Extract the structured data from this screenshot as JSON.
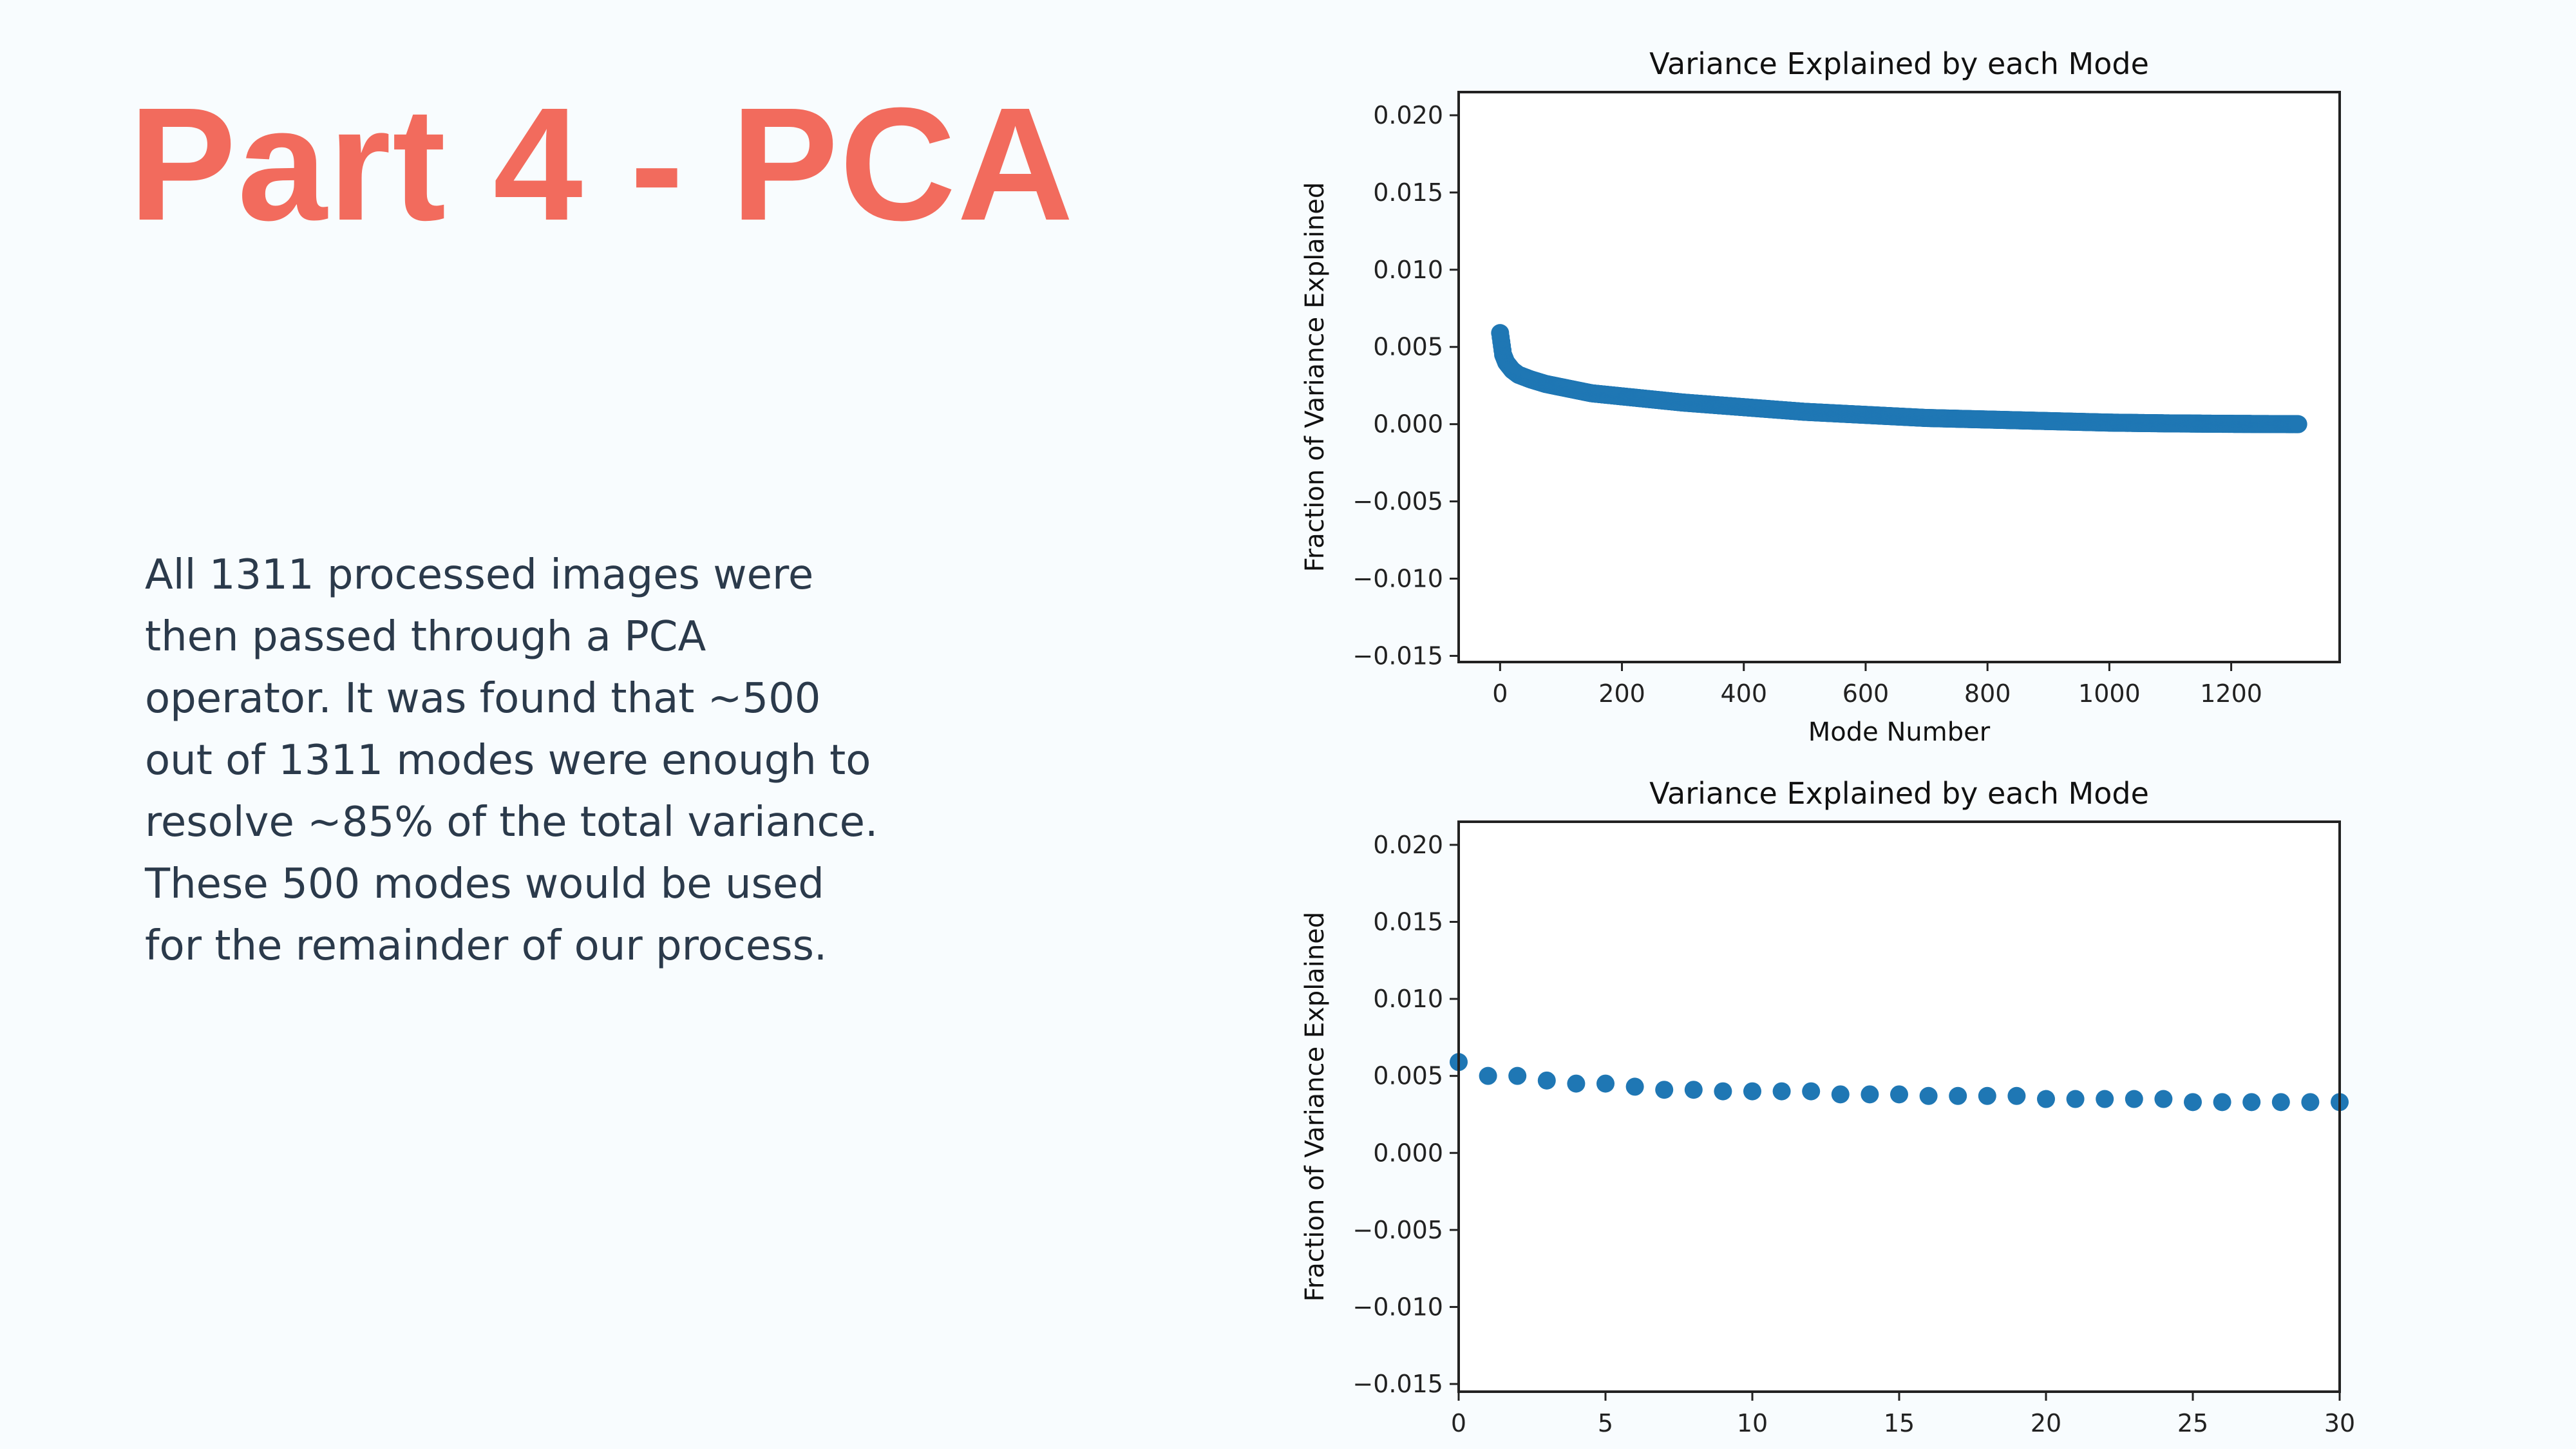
{
  "slide": {
    "title": "Part 4 - PCA",
    "body_lines": [
      "All 1311 processed images were",
      "then passed through a PCA",
      "operator. It was found that ~500",
      "out of 1311 modes were enough to",
      "resolve ~85% of the total variance.",
      "These 500 modes would be used",
      "for the remainder of our process."
    ],
    "colors": {
      "title": "#f26b5d",
      "text": "#2b3a4b",
      "background": "#f8fcfe",
      "marker": "#1f77b4"
    }
  },
  "chart_data": [
    {
      "type": "scatter",
      "title": "Variance Explained by each Mode",
      "xlabel": "Mode Number",
      "ylabel": "Fraction of Variance Explained",
      "xlim": [
        -68,
        1378
      ],
      "ylim": [
        -0.0154,
        0.0215
      ],
      "xticks": [
        0,
        200,
        400,
        600,
        800,
        1000,
        1200
      ],
      "yticks": [
        0.02,
        0.015,
        0.01,
        0.005,
        0.0,
        -0.005,
        -0.01,
        -0.015
      ],
      "ytick_labels": [
        "0.020",
        "0.015",
        "0.010",
        "0.005",
        "0.000",
        "−0.005",
        "−0.010",
        "−0.015"
      ],
      "grid": false,
      "x": [
        0,
        5,
        10,
        20,
        30,
        50,
        75,
        100,
        150,
        200,
        250,
        300,
        400,
        500,
        600,
        700,
        800,
        900,
        1000,
        1100,
        1200,
        1310
      ],
      "y": [
        0.0059,
        0.0045,
        0.004,
        0.0035,
        0.0032,
        0.0029,
        0.0026,
        0.0024,
        0.002,
        0.0018,
        0.0016,
        0.0014,
        0.0011,
        0.0008,
        0.0006,
        0.0004,
        0.0003,
        0.0002,
        0.0001,
        5e-05,
        2e-05,
        0.0
      ]
    },
    {
      "type": "scatter",
      "title": "Variance Explained by each Mode",
      "xlabel": "",
      "ylabel": "Fraction of Variance Explained",
      "xlim": [
        0,
        30
      ],
      "ylim": [
        -0.0155,
        0.0215
      ],
      "xticks": [
        0,
        5,
        10,
        15,
        20,
        25,
        30
      ],
      "yticks": [
        0.02,
        0.015,
        0.01,
        0.005,
        0.0,
        -0.005,
        -0.01,
        -0.015
      ],
      "ytick_labels": [
        "0.020",
        "0.015",
        "0.010",
        "0.005",
        "0.000",
        "−0.005",
        "−0.010",
        "−0.015"
      ],
      "grid": false,
      "x": [
        0,
        1,
        2,
        3,
        4,
        5,
        6,
        7,
        8,
        9,
        10,
        11,
        12,
        13,
        14,
        15,
        16,
        17,
        18,
        19,
        20,
        21,
        22,
        23,
        24,
        25,
        26,
        27,
        28,
        29,
        30
      ],
      "y": [
        0.0059,
        0.005,
        0.005,
        0.0047,
        0.0045,
        0.0045,
        0.0043,
        0.0041,
        0.0041,
        0.004,
        0.004,
        0.004,
        0.004,
        0.0038,
        0.0038,
        0.0038,
        0.0037,
        0.0037,
        0.0037,
        0.0037,
        0.0035,
        0.0035,
        0.0035,
        0.0035,
        0.0035,
        0.0033,
        0.0033,
        0.0033,
        0.0033,
        0.0033,
        0.0033
      ]
    }
  ]
}
